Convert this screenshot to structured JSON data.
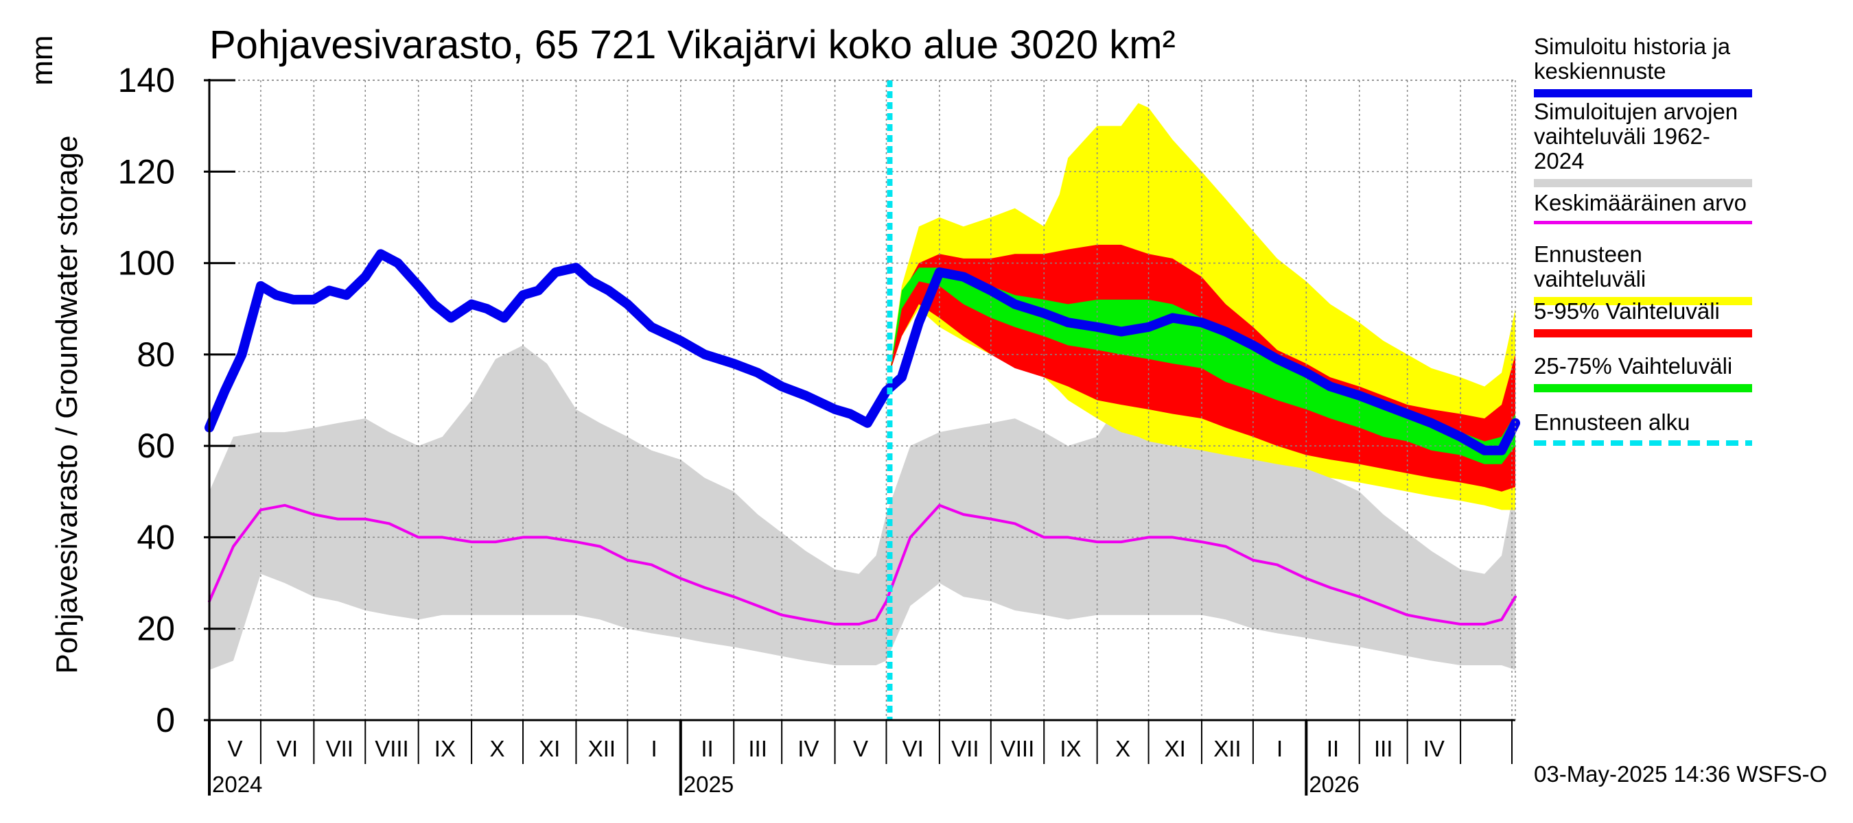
{
  "chart_data": {
    "type": "area",
    "title": "Pohjavesivarasto, 65 721 Vikajärvi koko alue 3020 km²",
    "ylabel": "Pohjavesivarasto / Groundwater storage",
    "yunit": "mm",
    "ylim": [
      0,
      140
    ],
    "yticks": [
      0,
      20,
      40,
      60,
      80,
      100,
      120,
      140
    ],
    "xlim": [
      "2024-04-01",
      "2026-05-03"
    ],
    "month_ticks": [
      "V",
      "VI",
      "VII",
      "VIII",
      "IX",
      "X",
      "XI",
      "XII",
      "I",
      "II",
      "III",
      "IV",
      "V",
      "VI",
      "VII",
      "VIII",
      "IX",
      "X",
      "XI",
      "XII",
      "I",
      "II",
      "III",
      "IV"
    ],
    "years": [
      {
        "label": "2024",
        "date": "2024-04-01"
      },
      {
        "label": "2025",
        "date": "2025-01-01"
      },
      {
        "label": "2026",
        "date": "2026-01-01"
      }
    ],
    "grid": true,
    "legend_position": "right",
    "forecast_start": "2025-05-03",
    "series": [
      {
        "name": "Simuloitu historia ja keskiennuste",
        "color": "#0000ee",
        "x": [
          "2024-04-01",
          "2024-04-10",
          "2024-04-20",
          "2024-05-01",
          "2024-05-10",
          "2024-05-20",
          "2024-06-01",
          "2024-06-10",
          "2024-06-20",
          "2024-07-01",
          "2024-07-10",
          "2024-07-20",
          "2024-08-01",
          "2024-08-10",
          "2024-08-20",
          "2024-09-01",
          "2024-09-10",
          "2024-09-20",
          "2024-10-01",
          "2024-10-10",
          "2024-10-20",
          "2024-11-01",
          "2024-11-10",
          "2024-11-20",
          "2024-12-01",
          "2024-12-15",
          "2025-01-01",
          "2025-01-15",
          "2025-02-01",
          "2025-02-15",
          "2025-03-01",
          "2025-03-15",
          "2025-04-01",
          "2025-04-10",
          "2025-04-15",
          "2025-04-20",
          "2025-05-01",
          "2025-05-10",
          "2025-05-20",
          "2025-06-01",
          "2025-06-15",
          "2025-07-01",
          "2025-07-15",
          "2025-08-01",
          "2025-08-15",
          "2025-09-01",
          "2025-09-15",
          "2025-10-01",
          "2025-10-15",
          "2025-11-01",
          "2025-11-15",
          "2025-12-01",
          "2025-12-15",
          "2026-01-01",
          "2026-01-15",
          "2026-02-01",
          "2026-02-15",
          "2026-03-01",
          "2026-03-15",
          "2026-04-01",
          "2026-04-15",
          "2026-04-25",
          "2026-05-03"
        ],
        "y": [
          64,
          72,
          80,
          95,
          93,
          92,
          92,
          94,
          93,
          97,
          102,
          100,
          95,
          91,
          88,
          91,
          90,
          88,
          93,
          94,
          98,
          99,
          96,
          94,
          91,
          86,
          83,
          80,
          78,
          76,
          73,
          71,
          68,
          67,
          66,
          65,
          72,
          75,
          87,
          98,
          97,
          94,
          91,
          89,
          87,
          86,
          85,
          86,
          88,
          87,
          85,
          82,
          79,
          76,
          73,
          71,
          69,
          67,
          65,
          62,
          59,
          59,
          65
        ]
      },
      {
        "name": "Keskimääräinen arvo",
        "color": "#ee00ee",
        "x": [
          "2024-04-01",
          "2024-04-15",
          "2024-05-01",
          "2024-05-15",
          "2024-06-01",
          "2024-06-15",
          "2024-07-01",
          "2024-07-15",
          "2024-08-01",
          "2024-08-15",
          "2024-09-01",
          "2024-09-15",
          "2024-10-01",
          "2024-10-15",
          "2024-11-01",
          "2024-11-15",
          "2024-12-01",
          "2024-12-15",
          "2025-01-01",
          "2025-01-15",
          "2025-02-01",
          "2025-02-15",
          "2025-03-01",
          "2025-03-15",
          "2025-04-01",
          "2025-04-15",
          "2025-04-25",
          "2025-05-01",
          "2025-05-15",
          "2025-06-01",
          "2025-06-15",
          "2025-07-01",
          "2025-07-15",
          "2025-08-01",
          "2025-08-15",
          "2025-09-01",
          "2025-09-15",
          "2025-10-01",
          "2025-10-15",
          "2025-11-01",
          "2025-11-15",
          "2025-12-01",
          "2025-12-15",
          "2026-01-01",
          "2026-01-15",
          "2026-02-01",
          "2026-02-15",
          "2026-03-01",
          "2026-03-15",
          "2026-04-01",
          "2026-04-15",
          "2026-04-25",
          "2026-05-03"
        ],
        "y": [
          26,
          38,
          46,
          47,
          45,
          44,
          44,
          43,
          40,
          40,
          39,
          39,
          40,
          40,
          39,
          38,
          35,
          34,
          31,
          29,
          27,
          25,
          23,
          22,
          21,
          21,
          22,
          26,
          40,
          47,
          45,
          44,
          43,
          40,
          40,
          39,
          39,
          40,
          40,
          39,
          38,
          35,
          34,
          31,
          29,
          27,
          25,
          23,
          22,
          21,
          21,
          22,
          27
        ]
      },
      {
        "name": "Simuloitujen arvojen vaihteluväli 1962-2024",
        "color": "#d3d3d3",
        "x": [
          "2024-04-01",
          "2024-04-15",
          "2024-05-01",
          "2024-05-15",
          "2024-06-01",
          "2024-06-15",
          "2024-07-01",
          "2024-07-15",
          "2024-08-01",
          "2024-08-15",
          "2024-09-01",
          "2024-09-15",
          "2024-10-01",
          "2024-10-15",
          "2024-11-01",
          "2024-11-15",
          "2024-12-01",
          "2024-12-15",
          "2025-01-01",
          "2025-01-15",
          "2025-02-01",
          "2025-02-15",
          "2025-03-01",
          "2025-03-15",
          "2025-04-01",
          "2025-04-15",
          "2025-04-25",
          "2025-05-01",
          "2025-05-15",
          "2025-06-01",
          "2025-06-15",
          "2025-07-01",
          "2025-07-15",
          "2025-08-01",
          "2025-08-15",
          "2025-09-01",
          "2025-09-15",
          "2025-10-01",
          "2025-10-15",
          "2025-11-01",
          "2025-11-15",
          "2025-12-01",
          "2025-12-15",
          "2026-01-01",
          "2026-01-15",
          "2026-02-01",
          "2026-02-15",
          "2026-03-01",
          "2026-03-15",
          "2026-04-01",
          "2026-04-15",
          "2026-04-25",
          "2026-05-03"
        ],
        "upper": [
          50,
          62,
          63,
          63,
          64,
          65,
          66,
          63,
          60,
          62,
          70,
          79,
          82,
          78,
          68,
          65,
          62,
          59,
          57,
          53,
          50,
          45,
          41,
          37,
          33,
          32,
          36,
          45,
          60,
          63,
          64,
          65,
          66,
          63,
          60,
          62,
          70,
          72,
          70,
          68,
          65,
          62,
          59,
          57,
          53,
          50,
          45,
          41,
          37,
          33,
          32,
          36,
          52
        ],
        "lower": [
          11,
          13,
          32,
          30,
          27,
          26,
          24,
          23,
          22,
          23,
          23,
          23,
          23,
          23,
          23,
          22,
          20,
          19,
          18,
          17,
          16,
          15,
          14,
          13,
          12,
          12,
          12,
          13,
          25,
          30,
          27,
          26,
          24,
          23,
          22,
          23,
          23,
          23,
          23,
          23,
          22,
          20,
          19,
          18,
          17,
          16,
          15,
          14,
          13,
          12,
          12,
          12,
          11
        ]
      },
      {
        "name": "Ennusteen vaihteluväli",
        "color": "#ffff00",
        "x": [
          "2025-05-03",
          "2025-05-10",
          "2025-05-20",
          "2025-06-01",
          "2025-06-15",
          "2025-07-01",
          "2025-07-15",
          "2025-08-01",
          "2025-08-10",
          "2025-08-15",
          "2025-09-01",
          "2025-09-15",
          "2025-09-25",
          "2025-10-01",
          "2025-10-15",
          "2025-11-01",
          "2025-11-15",
          "2025-12-01",
          "2025-12-15",
          "2026-01-01",
          "2026-01-15",
          "2026-02-01",
          "2026-02-15",
          "2026-03-01",
          "2026-03-15",
          "2026-04-01",
          "2026-04-15",
          "2026-04-25",
          "2026-05-03"
        ],
        "upper": [
          76,
          95,
          108,
          110,
          108,
          110,
          112,
          108,
          115,
          123,
          130,
          130,
          135,
          134,
          127,
          120,
          114,
          107,
          101,
          96,
          91,
          87,
          83,
          80,
          77,
          75,
          73,
          76,
          90
        ],
        "lower": [
          76,
          84,
          90,
          86,
          83,
          80,
          78,
          75,
          72,
          70,
          66,
          63,
          62,
          61,
          60,
          59,
          58,
          57,
          56,
          55,
          53,
          52,
          51,
          50,
          49,
          48,
          47,
          46,
          46
        ]
      },
      {
        "name": "5-95% Vaihteluväli",
        "color": "#ff0000",
        "x": [
          "2025-05-03",
          "2025-05-10",
          "2025-05-20",
          "2025-06-01",
          "2025-06-15",
          "2025-07-01",
          "2025-07-15",
          "2025-08-01",
          "2025-08-15",
          "2025-09-01",
          "2025-09-15",
          "2025-10-01",
          "2025-10-15",
          "2025-11-01",
          "2025-11-15",
          "2025-12-01",
          "2025-12-15",
          "2026-01-01",
          "2026-01-15",
          "2026-02-01",
          "2026-02-15",
          "2026-03-01",
          "2026-03-15",
          "2026-04-01",
          "2026-04-15",
          "2026-04-25",
          "2026-05-03"
        ],
        "upper": [
          76,
          93,
          100,
          102,
          101,
          101,
          102,
          102,
          103,
          104,
          104,
          102,
          101,
          97,
          91,
          86,
          81,
          78,
          75,
          73,
          71,
          69,
          68,
          67,
          66,
          69,
          80
        ],
        "lower": [
          76,
          84,
          91,
          88,
          84,
          80,
          77,
          75,
          73,
          70,
          69,
          68,
          67,
          66,
          64,
          62,
          60,
          58,
          57,
          56,
          55,
          54,
          53,
          52,
          51,
          50,
          51
        ]
      },
      {
        "name": "25-75% Vaihteluväli",
        "color": "#00ee00",
        "x": [
          "2025-05-03",
          "2025-05-10",
          "2025-05-20",
          "2025-06-01",
          "2025-06-15",
          "2025-07-01",
          "2025-07-15",
          "2025-08-01",
          "2025-08-15",
          "2025-09-01",
          "2025-09-15",
          "2025-10-01",
          "2025-10-15",
          "2025-11-01",
          "2025-11-15",
          "2025-12-01",
          "2025-12-15",
          "2026-01-01",
          "2026-01-15",
          "2026-02-01",
          "2026-02-15",
          "2026-03-01",
          "2026-03-15",
          "2026-04-01",
          "2026-04-15",
          "2026-04-25",
          "2026-05-03"
        ],
        "upper": [
          76,
          94,
          99,
          99,
          97,
          95,
          93,
          92,
          91,
          92,
          92,
          92,
          91,
          88,
          85,
          81,
          78,
          75,
          73,
          70,
          68,
          66,
          64,
          63,
          61,
          62,
          67
        ],
        "lower": [
          76,
          90,
          96,
          95,
          91,
          88,
          86,
          84,
          82,
          81,
          80,
          79,
          78,
          77,
          74,
          72,
          70,
          68,
          66,
          64,
          62,
          61,
          59,
          58,
          56,
          56,
          60
        ]
      },
      {
        "name": "Ennusteen alku",
        "color": "#00e5f0",
        "date": "2025-05-03"
      }
    ]
  },
  "legend": {
    "items": [
      {
        "label": "Simuloitu historia ja\nkeskiennuste",
        "color": "#0000ee",
        "style": "thick"
      },
      {
        "label": "Simuloitujen arvojen\nvaihteluväli 1962-2024",
        "color": "#d3d3d3",
        "style": "thick"
      },
      {
        "label": "Keskimääräinen arvo",
        "color": "#ee00ee",
        "style": "thin"
      },
      {
        "label": "Ennusteen vaihteluväli",
        "color": "#ffff00",
        "style": "thick"
      },
      {
        "label": "5-95% Vaihteluväli",
        "color": "#ff0000",
        "style": "thick"
      },
      {
        "label": "25-75% Vaihteluväli",
        "color": "#00ee00",
        "style": "thick"
      },
      {
        "label": "Ennusteen alku",
        "color": "#00e5f0",
        "style": "dotted"
      }
    ]
  },
  "footer": "03-May-2025 14:36 WSFS-O"
}
